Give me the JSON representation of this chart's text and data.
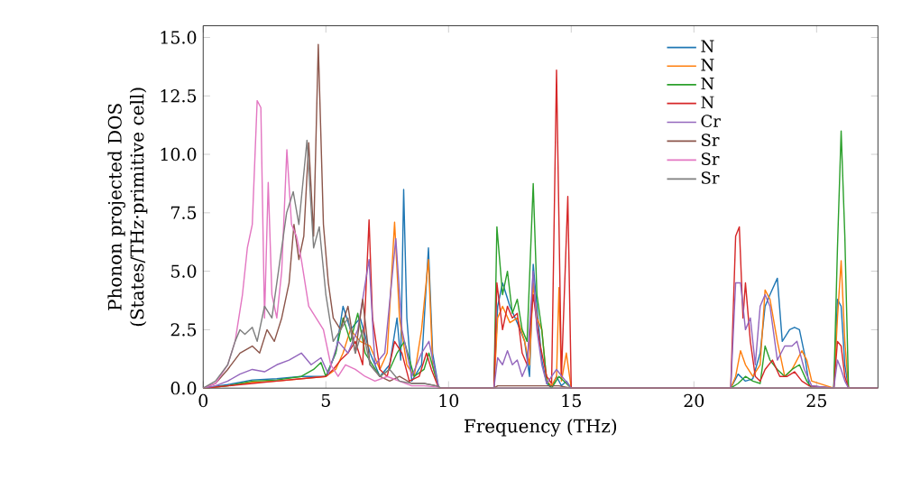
{
  "chart_data": {
    "type": "line",
    "xlabel": "Frequency (THz)",
    "ylabel": "Phonon projected DOS (States/THz·primitive cell)",
    "xlim": [
      0,
      27.5
    ],
    "ylim": [
      0,
      15.5
    ],
    "xticks": [
      0,
      5,
      10,
      15,
      20,
      25
    ],
    "yticks": [
      {
        "value": 0,
        "label": "0.0"
      },
      {
        "value": 2.5,
        "label": "2.5"
      },
      {
        "value": 5,
        "label": "5.0"
      },
      {
        "value": 7.5,
        "label": "7.5"
      },
      {
        "value": 10,
        "label": "10.0"
      },
      {
        "value": 12.5,
        "label": "12.5"
      },
      {
        "value": 15,
        "label": "15.0"
      }
    ],
    "legend": "top right",
    "series": [
      {
        "name": "N",
        "color": "#1f77b4",
        "x": [
          0,
          1,
          2,
          3,
          4,
          5,
          5.4,
          5.7,
          6.0,
          6.4,
          6.8,
          7.2,
          7.6,
          7.9,
          8.05,
          8.17,
          8.3,
          8.5,
          8.9,
          9.18,
          9.35,
          9.6,
          11.85,
          12.0,
          12.2,
          12.5,
          12.8,
          13.1,
          13.3,
          13.45,
          13.6,
          13.8,
          14.0,
          14.2,
          14.4,
          14.6,
          14.8,
          15.0,
          21.5,
          21.8,
          22.1,
          22.4,
          22.7,
          22.9,
          23.1,
          23.4,
          23.6,
          23.9,
          24.1,
          24.3,
          24.5,
          24.7,
          25.7,
          25.85,
          26.0,
          26.15,
          26.3,
          27.5
        ],
        "values": [
          0,
          0.15,
          0.35,
          0.4,
          0.5,
          0.5,
          1.5,
          3.5,
          2.5,
          3.0,
          1.5,
          0.5,
          1.0,
          3.0,
          1.2,
          8.5,
          3.0,
          0.3,
          1.0,
          6.0,
          1.5,
          0,
          0,
          3.5,
          4.5,
          3.5,
          2.8,
          2.0,
          0.5,
          5.3,
          3.5,
          1.2,
          0.2,
          0,
          0.5,
          0.1,
          0.3,
          0,
          0,
          0.6,
          0.3,
          0.4,
          1.5,
          3.5,
          4.0,
          4.7,
          2.0,
          2.5,
          2.6,
          2.5,
          1.5,
          0.1,
          0,
          3.8,
          3.5,
          1.0,
          0,
          0
        ]
      },
      {
        "name": "N",
        "color": "#ff7f0e",
        "x": [
          0,
          1,
          2,
          3,
          4,
          5,
          5.4,
          5.7,
          6.0,
          6.4,
          6.8,
          7.2,
          7.5,
          7.8,
          8.0,
          8.3,
          8.6,
          8.9,
          9.18,
          9.35,
          9.6,
          11.85,
          12.0,
          12.2,
          12.5,
          12.8,
          13.1,
          13.3,
          13.45,
          13.6,
          13.8,
          14.0,
          14.2,
          14.4,
          14.5,
          14.6,
          14.8,
          15.0,
          21.5,
          21.7,
          21.9,
          22.1,
          22.4,
          22.7,
          22.9,
          23.1,
          23.4,
          23.7,
          24.0,
          24.2,
          24.4,
          24.6,
          24.8,
          25.7,
          25.85,
          26.0,
          26.15,
          26.3,
          27.5
        ],
        "values": [
          0,
          0.1,
          0.25,
          0.3,
          0.4,
          0.5,
          0.8,
          1.5,
          2.5,
          2.0,
          1.8,
          0.8,
          1.5,
          7.1,
          3.0,
          1.0,
          0.5,
          2.5,
          5.5,
          1.0,
          0,
          0,
          3.0,
          3.5,
          2.8,
          3.0,
          2.0,
          1.0,
          4.5,
          3.0,
          2.5,
          0.3,
          0.1,
          0.5,
          4.3,
          0.3,
          1.5,
          0,
          0,
          0.5,
          1.6,
          1.0,
          0.5,
          1.0,
          4.2,
          3.8,
          2.0,
          0.5,
          0.8,
          1.2,
          1.6,
          1.2,
          0.3,
          0,
          3.0,
          5.45,
          2.0,
          0,
          0
        ]
      },
      {
        "name": "N",
        "color": "#2ca02c",
        "x": [
          0,
          1,
          2,
          3,
          4,
          4.5,
          4.8,
          5.0,
          5.4,
          5.7,
          6.0,
          6.3,
          6.6,
          6.9,
          7.2,
          7.6,
          7.9,
          8.2,
          8.6,
          9.0,
          9.2,
          9.6,
          11.85,
          11.97,
          12.2,
          12.4,
          12.6,
          12.8,
          13.0,
          13.2,
          13.45,
          13.6,
          13.8,
          14.0,
          14.2,
          14.5,
          14.8,
          15.0,
          21.5,
          21.8,
          22.1,
          22.4,
          22.7,
          22.9,
          23.1,
          23.4,
          23.7,
          24.0,
          24.3,
          24.6,
          24.8,
          25.7,
          25.85,
          26.0,
          26.15,
          26.3,
          27.5
        ],
        "values": [
          0,
          0.1,
          0.3,
          0.35,
          0.5,
          0.8,
          1.1,
          0.5,
          1.5,
          3.0,
          2.0,
          3.2,
          1.5,
          1.0,
          0.5,
          0.8,
          1.5,
          2.0,
          0.5,
          0.8,
          1.5,
          0,
          0,
          6.9,
          4.0,
          5.0,
          3.2,
          3.8,
          2.5,
          2.0,
          8.75,
          4.0,
          2.5,
          0.3,
          0,
          0.5,
          0.2,
          0,
          0,
          0.2,
          0.5,
          0.3,
          0.2,
          1.8,
          1.2,
          0.8,
          0.5,
          0.8,
          1.0,
          0.3,
          0,
          0,
          6.0,
          11.0,
          6.5,
          0,
          0
        ]
      },
      {
        "name": "N",
        "color": "#d62728",
        "x": [
          0,
          1,
          2,
          3,
          4,
          5,
          5.3,
          5.6,
          5.9,
          6.2,
          6.5,
          6.76,
          6.9,
          7.2,
          7.5,
          7.8,
          8.1,
          8.4,
          8.8,
          9.1,
          9.3,
          9.6,
          11.85,
          11.97,
          12.2,
          12.4,
          12.6,
          12.8,
          13.0,
          13.2,
          13.45,
          13.7,
          14.0,
          14.2,
          14.4,
          14.6,
          14.86,
          15.0,
          21.5,
          21.7,
          21.85,
          22.0,
          22.1,
          22.3,
          22.5,
          22.7,
          22.9,
          23.2,
          23.5,
          23.8,
          24.1,
          24.4,
          24.7,
          25.7,
          25.85,
          26.0,
          26.15,
          26.3,
          27.5
        ],
        "values": [
          0,
          0.1,
          0.2,
          0.3,
          0.4,
          0.5,
          0.8,
          1.2,
          1.5,
          2.0,
          1.0,
          7.2,
          3.0,
          0.8,
          0.5,
          2.0,
          1.5,
          0.3,
          0.5,
          1.5,
          0.8,
          0,
          0,
          4.5,
          2.5,
          3.5,
          3.0,
          3.2,
          1.5,
          1.0,
          4.0,
          2.0,
          0.5,
          0.2,
          13.6,
          0.5,
          8.2,
          0,
          0,
          6.5,
          6.9,
          3.0,
          4.5,
          2.0,
          0.5,
          0.3,
          0.8,
          1.2,
          0.5,
          0.5,
          0.7,
          0.3,
          0.1,
          0,
          2.0,
          1.8,
          0.5,
          0,
          0
        ]
      },
      {
        "name": "Cr",
        "color": "#9467bd",
        "x": [
          0,
          0.5,
          1,
          1.5,
          2,
          2.5,
          3,
          3.5,
          4,
          4.4,
          4.8,
          5.1,
          5.5,
          5.9,
          6.3,
          6.76,
          7.0,
          7.4,
          7.85,
          8.1,
          8.5,
          8.9,
          9.2,
          9.6,
          11.85,
          12.0,
          12.2,
          12.4,
          12.6,
          12.8,
          13.0,
          13.2,
          13.45,
          13.6,
          13.8,
          14.0,
          14.4,
          15.0,
          21.5,
          21.7,
          21.9,
          22.1,
          22.3,
          22.5,
          22.7,
          22.9,
          23.1,
          23.4,
          23.7,
          24.0,
          24.2,
          24.5,
          24.8,
          25.7,
          25.85,
          26.0,
          26.15,
          26.3,
          27.5
        ],
        "values": [
          0,
          0.1,
          0.3,
          0.6,
          0.8,
          0.7,
          1.0,
          1.2,
          1.5,
          1.0,
          1.3,
          0.6,
          2.0,
          1.5,
          2.5,
          5.5,
          1.0,
          1.5,
          6.4,
          2.5,
          0.5,
          1.5,
          2.0,
          0,
          0,
          1.3,
          1.0,
          1.6,
          1.0,
          1.2,
          0.5,
          1.0,
          5.0,
          2.5,
          1.0,
          0.2,
          0.8,
          0,
          0,
          4.5,
          4.5,
          2.5,
          3.0,
          1.0,
          3.5,
          4.0,
          3.5,
          1.2,
          1.8,
          1.8,
          2.0,
          0.8,
          0.1,
          0,
          1.2,
          0.8,
          0.3,
          0,
          0
        ]
      },
      {
        "name": "Sr",
        "color": "#8c564b",
        "x": [
          0,
          0.5,
          1,
          1.5,
          2,
          2.3,
          2.6,
          2.9,
          3.2,
          3.5,
          3.7,
          3.9,
          4.1,
          4.3,
          4.5,
          4.69,
          4.9,
          5.1,
          5.3,
          5.6,
          5.9,
          6.2,
          6.5,
          6.8,
          7.2,
          7.6,
          8.0,
          8.5,
          9.0,
          9.5,
          9.7,
          11.85,
          12.0,
          13.0,
          14.5,
          15.0,
          27.5
        ],
        "values": [
          0,
          0.2,
          0.8,
          1.5,
          1.8,
          1.5,
          2.5,
          2.0,
          3.0,
          4.5,
          7.0,
          5.5,
          6.5,
          10.5,
          6.5,
          14.7,
          7.0,
          4.5,
          3.0,
          2.5,
          3.5,
          1.5,
          3.8,
          1.0,
          0.5,
          0.3,
          0.5,
          0.2,
          0.2,
          0.1,
          0,
          0,
          0.1,
          0.1,
          0.1,
          0,
          0
        ]
      },
      {
        "name": "Sr",
        "color": "#e377c2",
        "x": [
          0,
          0.5,
          1,
          1.3,
          1.6,
          1.8,
          2.0,
          2.2,
          2.35,
          2.5,
          2.65,
          2.8,
          3.0,
          3.2,
          3.41,
          3.6,
          3.8,
          4.0,
          4.3,
          4.6,
          4.9,
          5.2,
          5.5,
          5.8,
          6.2,
          6.6,
          7.0,
          7.5,
          8.0,
          8.5,
          9.0,
          9.5,
          9.7,
          27.5
        ],
        "values": [
          0,
          0.2,
          1.0,
          2.0,
          4.0,
          6.0,
          7.0,
          12.3,
          12.0,
          3.0,
          8.8,
          4.0,
          3.0,
          5.0,
          10.2,
          7.0,
          6.5,
          5.5,
          3.5,
          3.0,
          2.5,
          1.0,
          0.5,
          1.0,
          0.8,
          0.5,
          0.3,
          0.5,
          0.3,
          0.1,
          0.1,
          0.05,
          0,
          0
        ]
      },
      {
        "name": "Sr",
        "color": "#7f7f7f",
        "x": [
          0,
          0.5,
          1,
          1.3,
          1.5,
          1.7,
          2.0,
          2.2,
          2.5,
          2.8,
          3.0,
          3.2,
          3.4,
          3.67,
          3.9,
          4.23,
          4.5,
          4.73,
          5.0,
          5.3,
          5.6,
          5.9,
          6.2,
          6.5,
          6.8,
          7.2,
          7.6,
          8.0,
          8.5,
          9.0,
          9.5,
          9.7,
          27.5
        ],
        "values": [
          0,
          0.3,
          1.0,
          2.0,
          2.5,
          2.3,
          2.6,
          2.0,
          3.5,
          3.0,
          4.5,
          6.0,
          7.5,
          8.4,
          7.0,
          10.6,
          6.0,
          6.9,
          4.0,
          2.0,
          2.5,
          3.0,
          1.5,
          2.5,
          1.0,
          0.5,
          0.8,
          0.3,
          0.2,
          0.2,
          0.1,
          0,
          0
        ]
      }
    ]
  }
}
